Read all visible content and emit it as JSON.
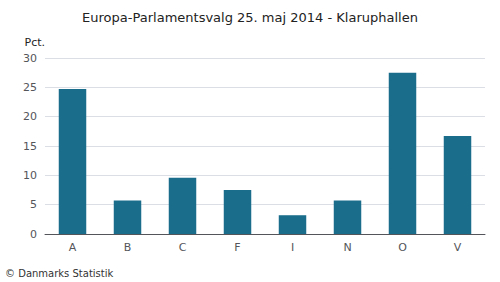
{
  "chart_data": {
    "type": "bar",
    "title": "Europa-Parlamentsvalg 25. maj 2014 - Klaruphallen",
    "categories": [
      "A",
      "B",
      "C",
      "F",
      "I",
      "N",
      "O",
      "V"
    ],
    "values": [
      24.7,
      5.7,
      9.6,
      7.5,
      3.2,
      5.7,
      27.5,
      16.7
    ],
    "color": "#1a6e8c",
    "ylabel": "Pct.",
    "annotations": [
      "© Danmarks Statistik"
    ],
    "ylim": [
      0,
      30
    ],
    "yticks": [
      0,
      5,
      10,
      15,
      20,
      25,
      30
    ],
    "grid": true
  }
}
